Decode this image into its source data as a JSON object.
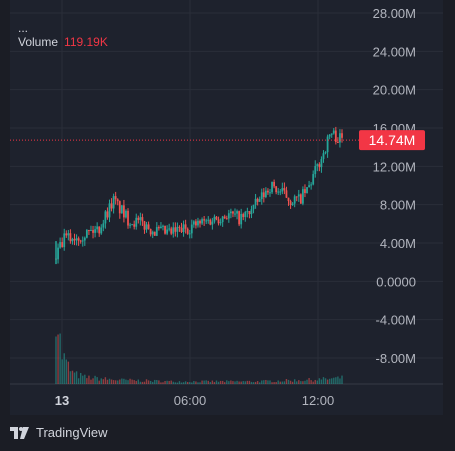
{
  "legend": {
    "ellipsis": "...",
    "volume_label": "Volume",
    "volume_value": "119.19K"
  },
  "brand": {
    "name": "TradingView",
    "icon": "tradingview-logo-icon"
  },
  "colors": {
    "up": "#26a69a",
    "down": "#ef5350",
    "price_line": "#f23645",
    "badge": "#f23645",
    "grid": "#2a2e39",
    "axis_text": "#b2b5be",
    "background": "#1b1d25"
  },
  "chart_data": {
    "type": "candlestick",
    "title": "",
    "xlabel": "",
    "ylabel": "",
    "ylim": [
      -10000000,
      28000000
    ],
    "y_ticks": [
      "28.00M",
      "24.00M",
      "20.00M",
      "16.00M",
      "12.00M",
      "8.00M",
      "4.00M",
      "0.0000",
      "-4.00M",
      "-8.00M"
    ],
    "y_tick_values": [
      28000000,
      24000000,
      20000000,
      16000000,
      12000000,
      8000000,
      4000000,
      0,
      -4000000,
      -8000000
    ],
    "x_ticks": [
      "13",
      "06:00",
      "12:00"
    ],
    "current_price": 14740000,
    "current_price_label": "14.74M",
    "grid": true,
    "price_trend": [
      [
        0,
        2500000
      ],
      [
        0.015,
        3500000
      ],
      [
        0.03,
        4500000
      ],
      [
        0.05,
        4500000
      ],
      [
        0.1,
        5000000
      ],
      [
        0.15,
        5500000
      ],
      [
        0.2,
        8500000
      ],
      [
        0.25,
        6500000
      ],
      [
        0.3,
        6000000
      ],
      [
        0.35,
        5200000
      ],
      [
        0.4,
        5000000
      ],
      [
        0.45,
        5500000
      ],
      [
        0.5,
        6000000
      ],
      [
        0.55,
        6500000
      ],
      [
        0.6,
        7000000
      ],
      [
        0.65,
        6500000
      ],
      [
        0.7,
        8000000
      ],
      [
        0.75,
        10000000
      ],
      [
        0.8,
        9000000
      ],
      [
        0.82,
        8500000
      ],
      [
        0.85,
        8500000
      ],
      [
        0.88,
        9500000
      ],
      [
        0.9,
        11000000
      ],
      [
        0.93,
        13000000
      ],
      [
        0.96,
        15500000
      ],
      [
        1.0,
        14740000
      ]
    ],
    "volume_series": {
      "name": "Volume",
      "overlay_range_max": 1.0,
      "profile": [
        [
          0,
          1.0
        ],
        [
          0.01,
          0.6
        ],
        [
          0.02,
          0.35
        ],
        [
          0.04,
          0.22
        ],
        [
          0.06,
          0.12
        ],
        [
          0.1,
          0.08
        ],
        [
          0.2,
          0.05
        ],
        [
          0.4,
          0.03
        ],
        [
          0.7,
          0.03
        ],
        [
          0.9,
          0.05
        ],
        [
          1.0,
          0.07
        ]
      ]
    }
  }
}
